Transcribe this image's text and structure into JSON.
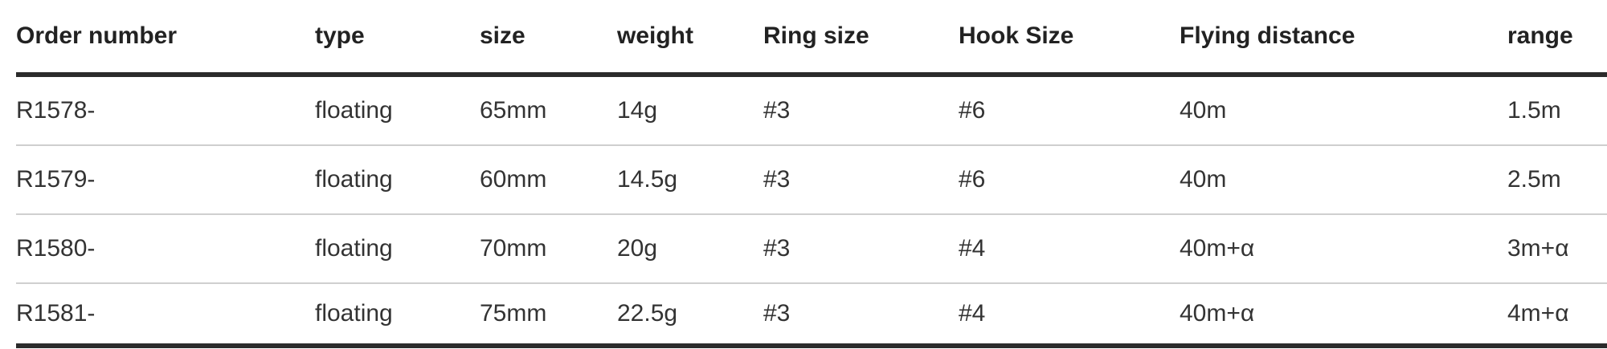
{
  "table": {
    "headers": [
      "Order number",
      "type",
      "size",
      "weight",
      "Ring size",
      "Hook Size",
      "Flying distance",
      "range"
    ],
    "rows": [
      {
        "cells": [
          "R1578-",
          "floating",
          "65mm",
          "14g",
          "#3",
          "#6",
          "40m",
          "1.5m"
        ]
      },
      {
        "cells": [
          "R1579-",
          "floating",
          "60mm",
          "14.5g",
          "#3",
          "#6",
          "40m",
          "2.5m"
        ]
      },
      {
        "cells": [
          "R1580-",
          "floating",
          "70mm",
          "20g",
          "#3",
          "#4",
          "40m+α",
          "3m+α"
        ]
      },
      {
        "cells": [
          "R1581-",
          "floating",
          "75mm",
          "22.5g",
          "#3",
          "#4",
          "40m+α",
          "4m+α"
        ]
      }
    ]
  },
  "colors": {
    "background": "#ffffff",
    "header_text": "#222222",
    "cell_text": "#333333",
    "header_rule": "#2b2b2b",
    "row_divider": "#cfcfcf"
  }
}
